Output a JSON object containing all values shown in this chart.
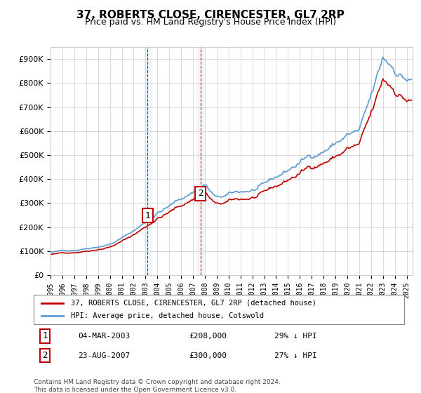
{
  "title": "37, ROBERTS CLOSE, CIRENCESTER, GL7 2RP",
  "subtitle": "Price paid vs. HM Land Registry's House Price Index (HPI)",
  "legend_line1": "37, ROBERTS CLOSE, CIRENCESTER, GL7 2RP (detached house)",
  "legend_line2": "HPI: Average price, detached house, Cotswold",
  "footnote": "Contains HM Land Registry data © Crown copyright and database right 2024.\nThis data is licensed under the Open Government Licence v3.0.",
  "transaction1_date": "04-MAR-2003",
  "transaction1_price": 208000,
  "transaction1_pct": "29% ↓ HPI",
  "transaction2_date": "23-AUG-2007",
  "transaction2_price": 300000,
  "transaction2_pct": "27% ↓ HPI",
  "hpi_color": "#5b9bd5",
  "price_color": "#c00000",
  "marker_box_color": "#c00000",
  "background_color": "#ffffff",
  "plot_bg_color": "#ffffff",
  "grid_color": "#cccccc",
  "highlight_color": "#dce6f1",
  "ylim": [
    0,
    950000
  ],
  "yticks": [
    0,
    100000,
    200000,
    300000,
    400000,
    500000,
    600000,
    700000,
    800000,
    900000
  ],
  "year_start": 1995,
  "year_end": 2025,
  "transaction1_year": 2003.17,
  "transaction2_year": 2007.64
}
